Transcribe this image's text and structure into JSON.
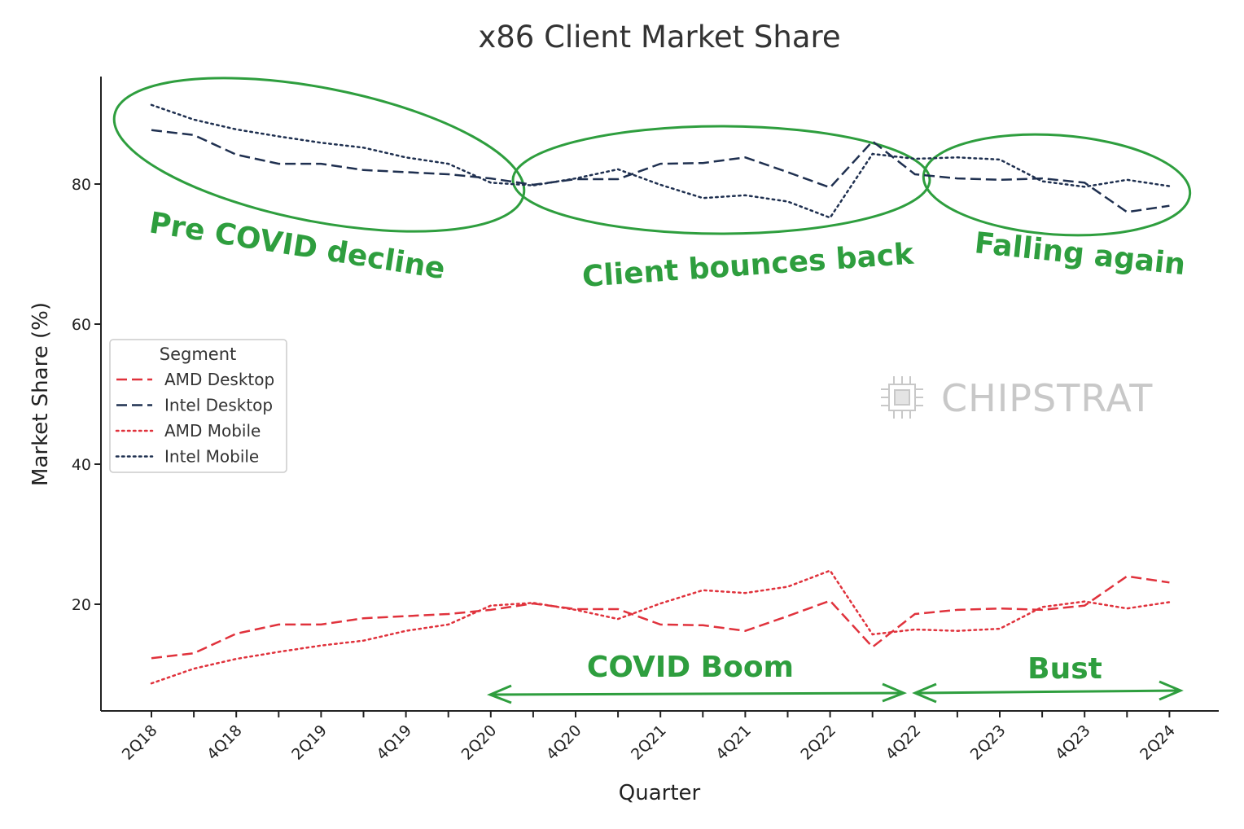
{
  "chart_data": {
    "type": "line",
    "title": "x86 Client Market Share",
    "xlabel": "Quarter",
    "ylabel": "Market Share (%)",
    "categories": [
      "2Q18",
      "3Q18",
      "4Q18",
      "1Q19",
      "2Q19",
      "3Q19",
      "4Q19",
      "1Q20",
      "2Q20",
      "3Q20",
      "4Q20",
      "1Q21",
      "2Q21",
      "3Q21",
      "4Q21",
      "1Q22",
      "2Q22",
      "3Q22",
      "4Q22",
      "1Q23",
      "2Q23",
      "3Q23",
      "4Q23",
      "1Q24",
      "2Q24"
    ],
    "tick_labels": [
      "2Q18",
      "4Q18",
      "2Q19",
      "4Q19",
      "2Q20",
      "4Q20",
      "2Q21",
      "4Q21",
      "2Q22",
      "4Q22",
      "2Q23",
      "4Q23",
      "2Q24"
    ],
    "yticks": [
      20,
      40,
      60,
      80
    ],
    "ylim": [
      4,
      96
    ],
    "grid": false,
    "legend": {
      "title": "Segment",
      "position": "center-left"
    },
    "series": [
      {
        "name": "AMD Desktop",
        "color": "#e0323c",
        "dash": "dashed",
        "values": [
          12.3,
          13.0,
          15.8,
          17.1,
          17.1,
          18.0,
          18.3,
          18.6,
          19.2,
          20.1,
          19.3,
          19.3,
          17.1,
          17.0,
          16.2,
          18.3,
          20.5,
          13.9,
          18.6,
          19.2,
          19.4,
          19.2,
          19.8,
          24.0,
          23.1
        ]
      },
      {
        "name": "Intel Desktop",
        "color": "#1f3050",
        "dash": "dashed",
        "values": [
          87.7,
          87.0,
          84.2,
          82.9,
          82.9,
          82.0,
          81.7,
          81.4,
          80.8,
          79.9,
          80.7,
          80.7,
          82.9,
          83.0,
          83.8,
          81.7,
          79.5,
          86.1,
          81.4,
          80.8,
          80.6,
          80.8,
          80.2,
          76.0,
          76.9
        ]
      },
      {
        "name": "AMD Mobile",
        "color": "#e0323c",
        "dash": "dotted",
        "values": [
          8.7,
          10.8,
          12.2,
          13.2,
          14.1,
          14.8,
          16.2,
          17.1,
          19.8,
          20.2,
          19.2,
          17.9,
          20.1,
          22.0,
          21.6,
          22.5,
          24.8,
          15.7,
          16.4,
          16.2,
          16.5,
          19.6,
          20.4,
          19.4,
          20.3
        ]
      },
      {
        "name": "Intel Mobile",
        "color": "#1f3050",
        "dash": "dotted",
        "values": [
          91.3,
          89.2,
          87.8,
          86.8,
          85.9,
          85.2,
          83.8,
          82.9,
          80.2,
          79.8,
          80.8,
          82.1,
          79.9,
          78.0,
          78.4,
          77.5,
          75.2,
          84.3,
          83.6,
          83.8,
          83.5,
          80.4,
          79.6,
          80.6,
          79.7
        ]
      }
    ],
    "annotations": [
      {
        "id": "pre-covid-decline",
        "text": "Pre COVID decline"
      },
      {
        "id": "client-bounces-back",
        "text": "Client bounces back"
      },
      {
        "id": "falling-again",
        "text": "Falling again"
      },
      {
        "id": "covid-boom",
        "text": "COVID Boom"
      },
      {
        "id": "bust",
        "text": "Bust"
      }
    ],
    "annotation_color": "#2e9e3e"
  },
  "watermark": {
    "text": "CHIPSTRAT",
    "icon": "chip-icon"
  }
}
